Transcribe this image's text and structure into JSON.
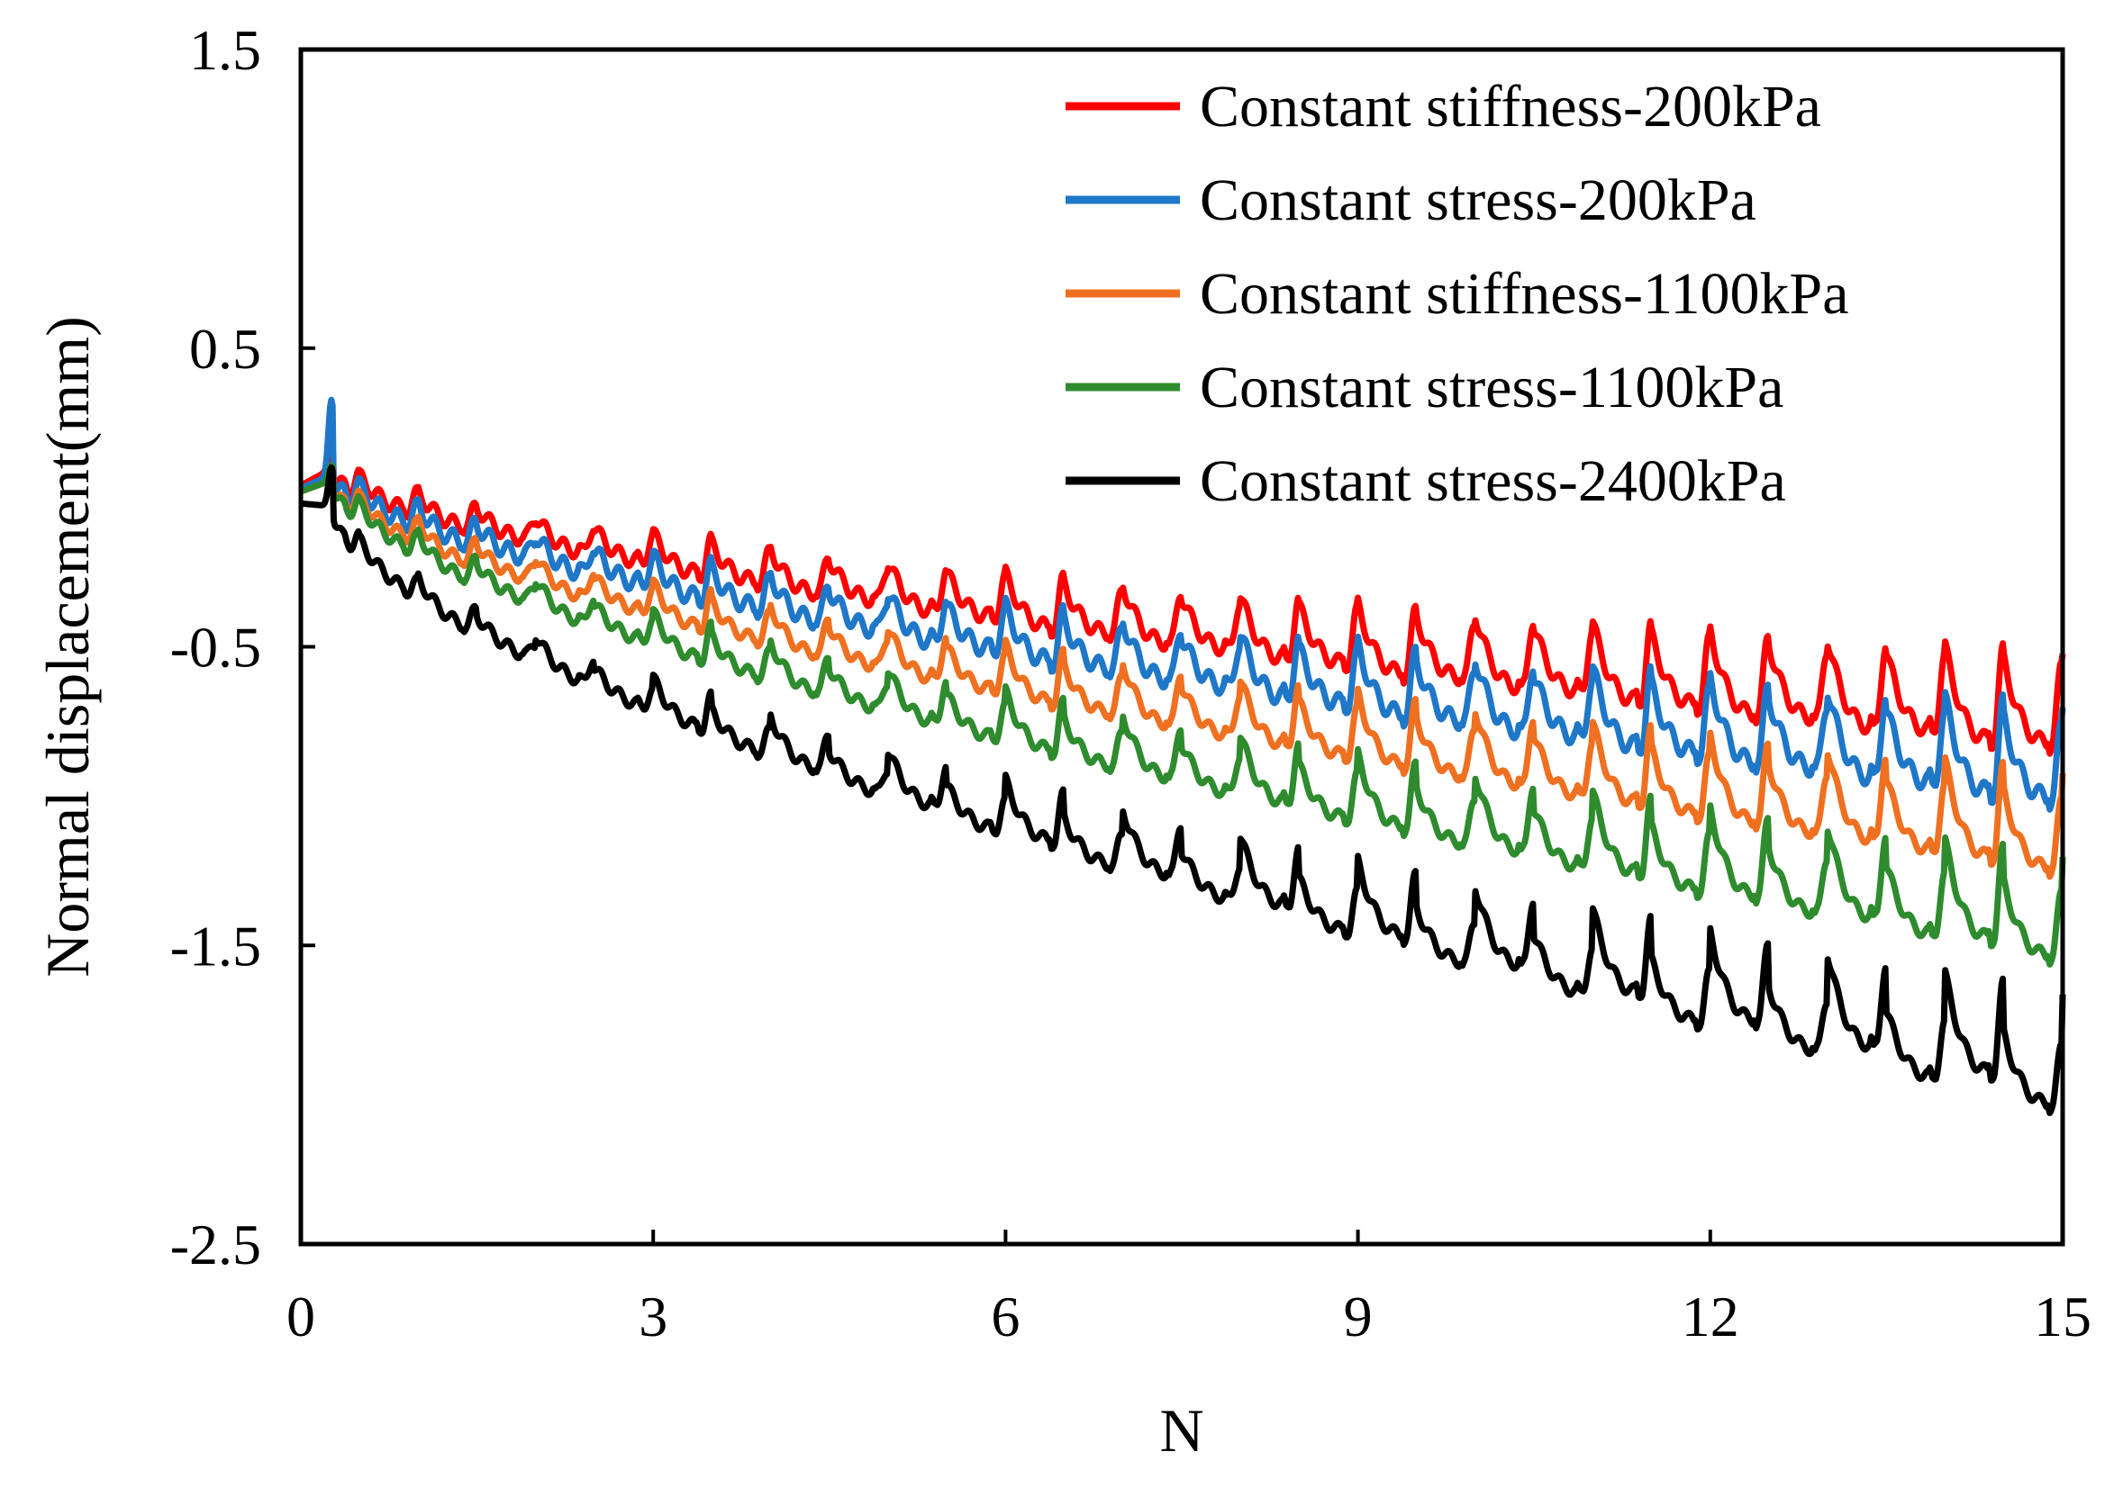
{
  "chart_data": {
    "type": "line",
    "title": "",
    "xlabel": "N",
    "ylabel": "Normal displacement(mm)",
    "xlim": [
      0,
      15
    ],
    "ylim": [
      -2.5,
      1.5
    ],
    "x_ticks": [
      0,
      3,
      6,
      9,
      12,
      15
    ],
    "x_tick_labels": [
      "0",
      "3",
      "6",
      "9",
      "12",
      "15"
    ],
    "y_ticks": [
      1.5,
      0.5,
      -0.5,
      -1.5,
      -2.5
    ],
    "y_tick_labels": [
      "1.5",
      "0.5",
      "-0.5",
      "-1.5",
      "-2.5"
    ],
    "grid": false,
    "legend_position": "top-right",
    "series": [
      {
        "name": "Constant stiffness-200kPa",
        "color": "#ff0000",
        "start": 0.04,
        "pre_peak": 0.1,
        "peak": 0.2,
        "end": -0.68,
        "half_amp": 0.025,
        "half_decay": 0.3,
        "half_dip": 0.03
      },
      {
        "name": "Constant stress-200kPa",
        "color": "#1f77c8",
        "start": 0.03,
        "pre_peak": 0.08,
        "peak": 0.33,
        "end": -0.86,
        "half_amp": 0.03,
        "half_decay": 0.25,
        "half_dip": 0.06
      },
      {
        "name": "Constant stiffness-1100kPa",
        "color": "#ee7020",
        "start": 0.02,
        "pre_peak": 0.06,
        "peak": 0.1,
        "end": -1.08,
        "half_amp": 0.02,
        "half_decay": 0.2,
        "half_dip": 0.12
      },
      {
        "name": "Constant stress-1100kPa",
        "color": "#2e8b2e",
        "start": 0.02,
        "pre_peak": 0.06,
        "peak": 0.11,
        "end": -1.36,
        "half_amp": 0.02,
        "half_decay": 0.15,
        "half_dip": 0.18
      },
      {
        "name": "Constant stress-2400kPa",
        "color": "#000000",
        "start": -0.02,
        "pre_peak": -0.03,
        "peak": 0.1,
        "end": -1.82,
        "half_amp": 0.02,
        "half_decay": 0.1,
        "half_dip": 0.3
      }
    ]
  }
}
